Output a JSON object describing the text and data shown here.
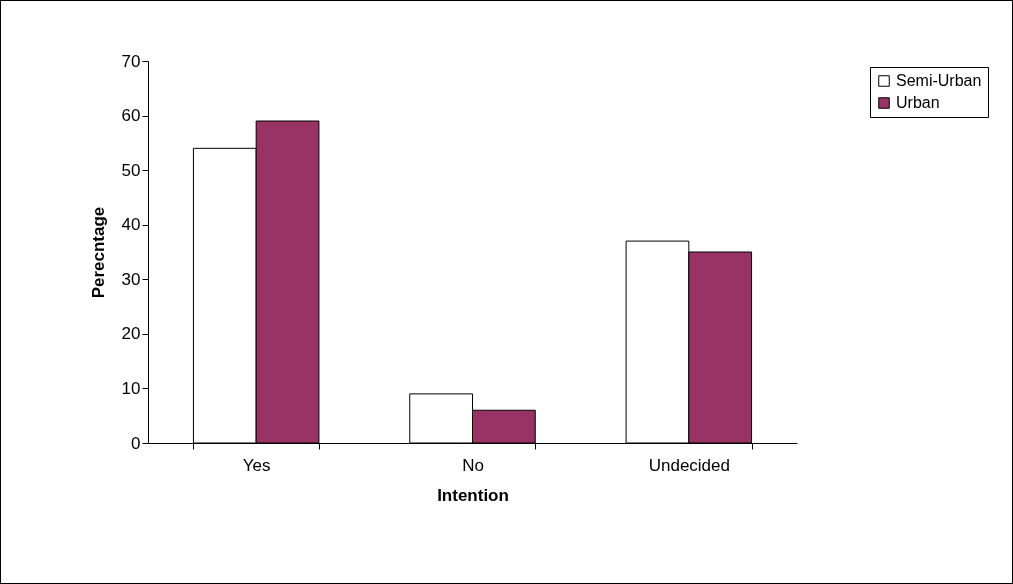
{
  "chart_data": {
    "type": "bar",
    "xlabel": "Intention",
    "ylabel": "Perecntage",
    "categories": [
      "Yes",
      "No",
      "Undecided"
    ],
    "series": [
      {
        "name": "Semi-Urban",
        "color": "#ffffff",
        "values": [
          54,
          9,
          37
        ]
      },
      {
        "name": "Urban",
        "color": "#993366",
        "values": [
          59,
          6,
          35
        ]
      }
    ],
    "ylim": [
      0,
      70
    ],
    "yticks": [
      0,
      10,
      20,
      30,
      40,
      50,
      60,
      70
    ],
    "grid": false,
    "legend": "top right"
  }
}
